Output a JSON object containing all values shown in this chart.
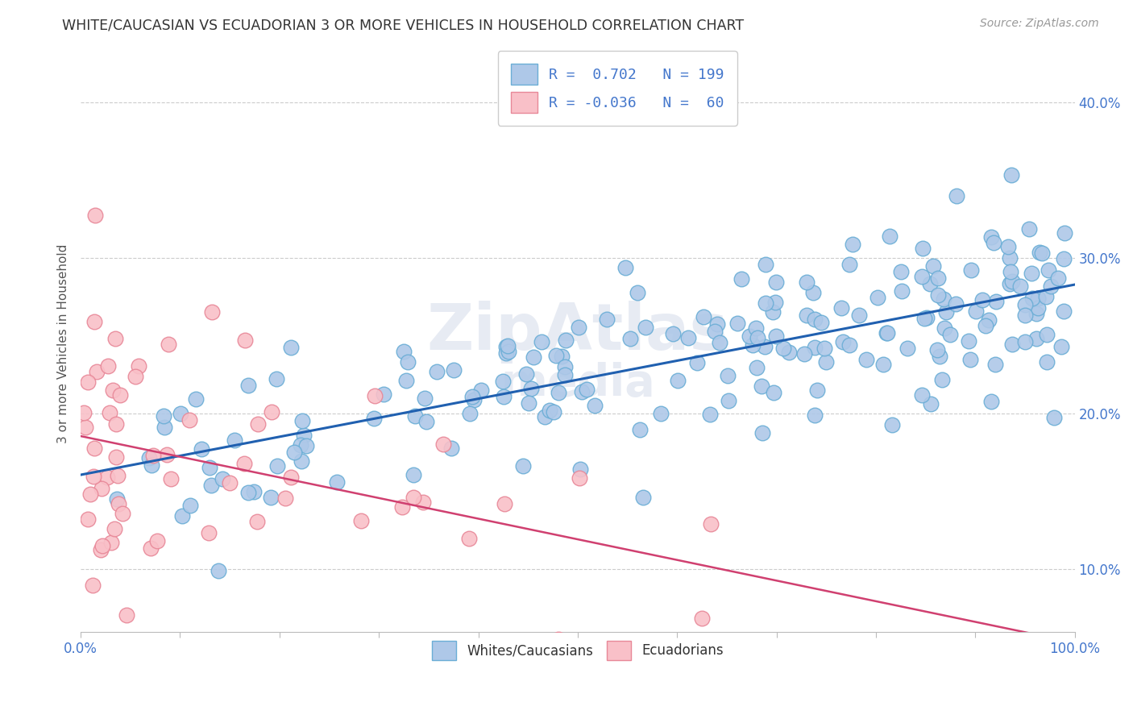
{
  "title": "WHITE/CAUCASIAN VS ECUADORIAN 3 OR MORE VEHICLES IN HOUSEHOLD CORRELATION CHART",
  "source": "Source: ZipAtlas.com",
  "ylabel": "3 or more Vehicles in Household",
  "blue_R": 0.702,
  "blue_N": 199,
  "pink_R": -0.036,
  "pink_N": 60,
  "xlim": [
    0.0,
    1.0
  ],
  "ylim": [
    0.06,
    0.43
  ],
  "y_ticks": [
    0.1,
    0.2,
    0.3,
    0.4
  ],
  "blue_color": "#aec8e8",
  "blue_edge_color": "#6baed6",
  "pink_color": "#f9c0c8",
  "pink_edge_color": "#e88898",
  "blue_line_color": "#2060b0",
  "pink_line_color": "#d04070",
  "watermark_top": "ZipAtlas",
  "watermark_bot": "media",
  "legend_labels": [
    "Whites/Caucasians",
    "Ecuadorians"
  ],
  "tick_color": "#4477cc",
  "axis_label_color": "#555555",
  "grid_color": "#cccccc",
  "title_color": "#333333"
}
